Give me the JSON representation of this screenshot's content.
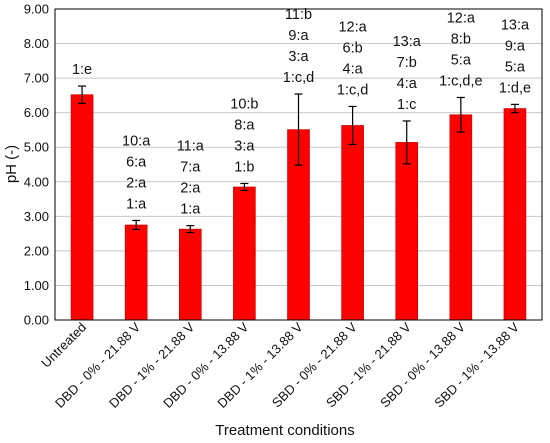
{
  "chart_data": {
    "type": "bar",
    "xlabel": "Treatment conditions",
    "ylabel": "pH (-)",
    "ylim": [
      0,
      9
    ],
    "yticks": [
      "0.00",
      "1.00",
      "2.00",
      "3.00",
      "4.00",
      "5.00",
      "6.00",
      "7.00",
      "8.00",
      "9.00"
    ],
    "bar_color": "#ff0000",
    "categories": [
      "Untreated",
      "DBD - 0% - 21.88 V",
      "DBD - 1% - 21.88 V",
      "DBD - 0% - 13.88 V",
      "DBD - 1% - 13.88 V",
      "SBD - 0% - 21.88 V",
      "SBD - 1% - 21.88 V",
      "SBD - 0% - 13.88 V",
      "SBD - 1% - 13.88 V"
    ],
    "values": [
      6.52,
      2.75,
      2.63,
      3.85,
      5.51,
      5.63,
      5.14,
      5.94,
      6.12
    ],
    "errors": [
      0.25,
      0.13,
      0.1,
      0.1,
      1.03,
      0.55,
      0.62,
      0.5,
      0.12
    ],
    "annotations": [
      [
        "1:e"
      ],
      [
        "10:a",
        "6:a",
        "2:a",
        "1:a"
      ],
      [
        "11:a",
        "7:a",
        "2:a",
        "1:a"
      ],
      [
        "10:b",
        "8:a",
        "3:a",
        "1:b"
      ],
      [
        "11:b",
        "9:a",
        "3:a",
        "1:c,d"
      ],
      [
        "12:a",
        "6:b",
        "4:a",
        "1:c,d"
      ],
      [
        "13:a",
        "7:b",
        "4:a",
        "1:c"
      ],
      [
        "12:a",
        "8:b",
        "5:a",
        "1:c,d,e"
      ],
      [
        "13:a",
        "9:a",
        "5:a",
        "1:d,e"
      ]
    ]
  }
}
